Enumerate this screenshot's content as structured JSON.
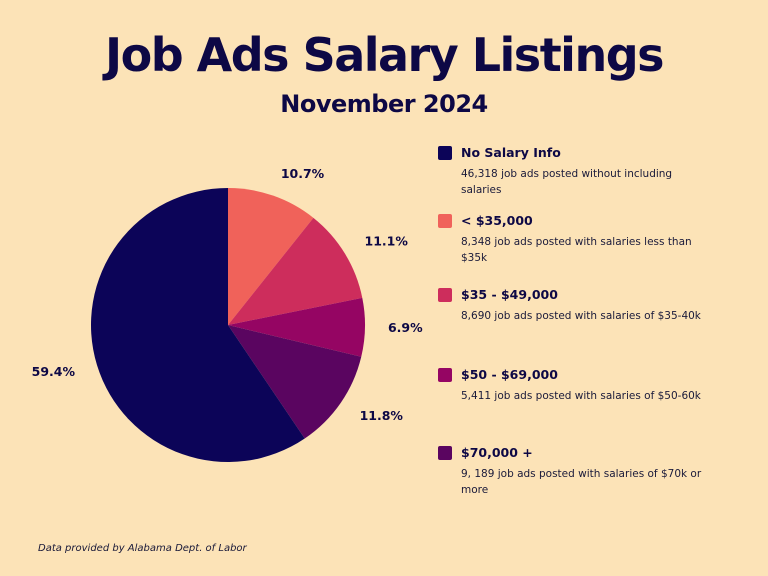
{
  "title": "Job Ads Salary Listings",
  "subtitle": "November 2024",
  "footer": "Data provided by Alabama Dept. of Labor",
  "chart_data": {
    "type": "pie",
    "title": "Job Ads Salary Listings",
    "subtitle": "November 2024",
    "start": "12 o'clock",
    "direction": "clockwise",
    "slices": [
      {
        "label": "< $35,000",
        "value": 10.7,
        "pct_label": "10.7%",
        "color": "#f0625a",
        "description": "8,348  job ads posted with salaries less than $35k"
      },
      {
        "label": "$35 - $49,000",
        "value": 11.1,
        "pct_label": "11.1%",
        "color": "#cd2d5c",
        "description": "8,690  job ads posted with salaries of $35-40k"
      },
      {
        "label": "$50 - $69,000",
        "value": 6.9,
        "pct_label": "6.9%",
        "color": "#950563",
        "description": "5,411  job ads posted with salaries of $50-60k"
      },
      {
        "label": "$70,000 +",
        "value": 11.8,
        "pct_label": "11.8%",
        "color": "#5a0560",
        "description": "9, 189  job ads posted with salaries of $70k or more"
      },
      {
        "label": "No Salary Info",
        "value": 59.4,
        "pct_label": "59.4%",
        "color": "#0c0458",
        "description": "46,318  job ads posted without including salaries"
      }
    ],
    "legend_order": [
      "No Salary Info",
      "< $35,000",
      "$35 - $49,000",
      "$50 - $69,000",
      "$70,000 +"
    ],
    "legend_position": "right"
  }
}
